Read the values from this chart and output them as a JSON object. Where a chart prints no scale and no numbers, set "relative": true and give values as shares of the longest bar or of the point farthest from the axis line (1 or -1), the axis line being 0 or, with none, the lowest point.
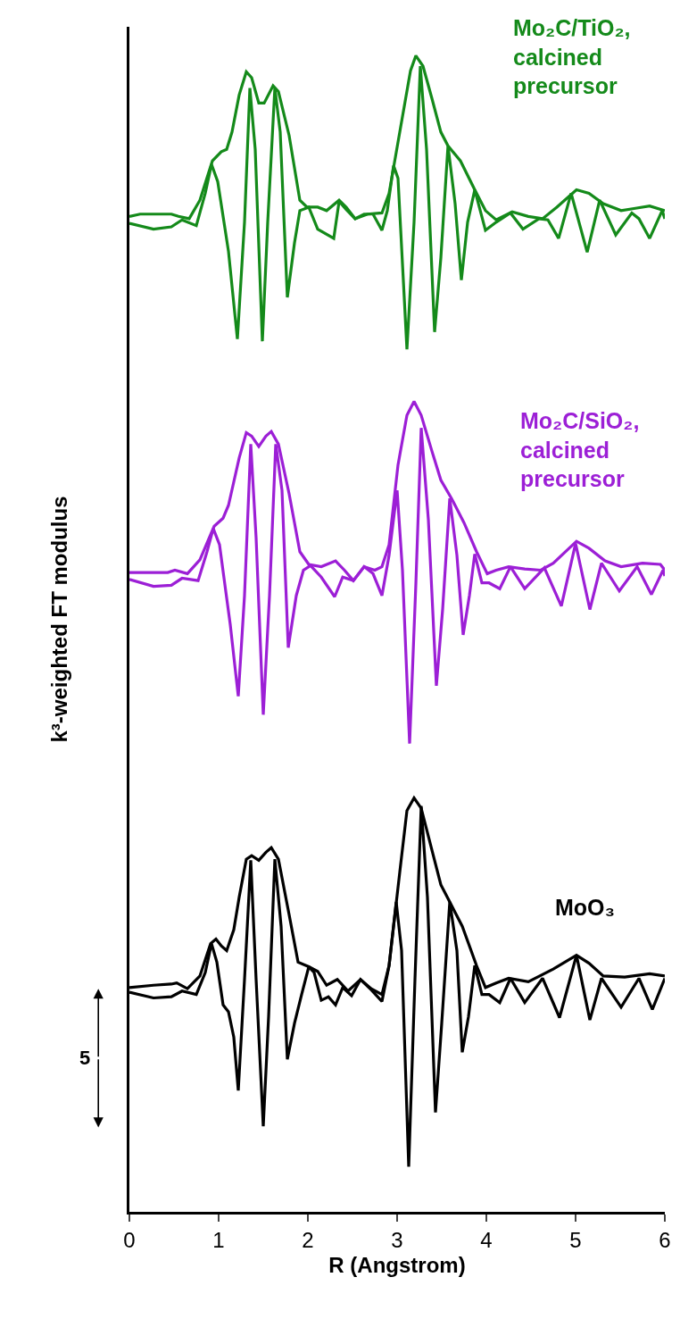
{
  "chart_data": {
    "type": "line",
    "relative": true,
    "xlabel": "R (Angstrom)",
    "ylabel": "k³-weighted FT modulus",
    "xlim": [
      0,
      6
    ],
    "xticks": [
      0,
      1,
      2,
      3,
      4,
      5,
      6
    ],
    "legend": false,
    "grid": false,
    "marker": "none",
    "line_style": "solid",
    "annotations": [
      "5"
    ],
    "series": [
      {
        "name": "Mo₂C/TiO₂, calcined precursor",
        "color": "#148a1a",
        "x": [
          0,
          0.12,
          0.27,
          0.47,
          0.55,
          0.67,
          0.79,
          0.93,
          1.03,
          1.09,
          1.15,
          1.23,
          1.31,
          1.37,
          1.45,
          1.51,
          1.61,
          1.67,
          1.79,
          1.91,
          1.99,
          2.11,
          2.21,
          2.35,
          2.43,
          2.53,
          2.67,
          2.83,
          2.91,
          3.03,
          3.15,
          3.21,
          3.29,
          3.39,
          3.49,
          3.57,
          3.71,
          3.87,
          3.99,
          4.11,
          4.29,
          4.47,
          4.63,
          4.79,
          5.01,
          5.15,
          5.31,
          5.51,
          5.67,
          5.83,
          6.0
        ],
        "values": [
          0.861,
          0.863,
          0.863,
          0.863,
          0.861,
          0.859,
          0.875,
          0.909,
          0.917,
          0.919,
          0.934,
          0.966,
          0.986,
          0.981,
          0.959,
          0.959,
          0.974,
          0.969,
          0.931,
          0.875,
          0.869,
          0.869,
          0.866,
          0.875,
          0.869,
          0.859,
          0.863,
          0.864,
          0.881,
          0.934,
          0.987,
          1.0,
          0.991,
          0.963,
          0.934,
          0.922,
          0.909,
          0.884,
          0.866,
          0.858,
          0.865,
          0.861,
          0.859,
          0.869,
          0.884,
          0.881,
          0.872,
          0.866,
          0.868,
          0.87,
          0.866
        ]
      },
      {
        "color": "#148a1a",
        "x": [
          0,
          0.27,
          0.47,
          0.59,
          0.75,
          0.85,
          0.92,
          0.99,
          1.11,
          1.21,
          1.29,
          1.35,
          1.41,
          1.49,
          1.55,
          1.63,
          1.69,
          1.77,
          1.85,
          1.91,
          2.01,
          2.11,
          2.29,
          2.35,
          2.43,
          2.53,
          2.63,
          2.73,
          2.83,
          2.89,
          2.96,
          3.01,
          3.11,
          3.19,
          3.26,
          3.33,
          3.42,
          3.49,
          3.57,
          3.65,
          3.72,
          3.79,
          3.87,
          3.99,
          4.11,
          4.27,
          4.41,
          4.59,
          4.69,
          4.81,
          4.95,
          5.13,
          5.27,
          5.45,
          5.63,
          5.71,
          5.83,
          5.97,
          6.0
        ],
        "values": [
          0.855,
          0.85,
          0.852,
          0.858,
          0.853,
          0.881,
          0.906,
          0.891,
          0.831,
          0.755,
          0.856,
          0.972,
          0.919,
          0.753,
          0.856,
          0.972,
          0.934,
          0.791,
          0.838,
          0.866,
          0.869,
          0.85,
          0.842,
          0.874,
          0.867,
          0.859,
          0.863,
          0.863,
          0.849,
          0.866,
          0.905,
          0.894,
          0.746,
          0.856,
          0.991,
          0.919,
          0.761,
          0.825,
          0.922,
          0.872,
          0.806,
          0.856,
          0.884,
          0.849,
          0.856,
          0.864,
          0.85,
          0.859,
          0.858,
          0.842,
          0.881,
          0.83,
          0.875,
          0.845,
          0.864,
          0.859,
          0.842,
          0.866,
          0.859
        ]
      },
      {
        "name": "Mo₂C/SiO₂, calcined precursor",
        "color": "#9c1fd6",
        "x": [
          0,
          0.19,
          0.43,
          0.51,
          0.65,
          0.79,
          0.95,
          1.05,
          1.11,
          1.23,
          1.31,
          1.37,
          1.45,
          1.53,
          1.59,
          1.67,
          1.79,
          1.91,
          2.01,
          2.15,
          2.31,
          2.41,
          2.51,
          2.63,
          2.75,
          2.83,
          2.91,
          3.01,
          3.11,
          3.19,
          3.27,
          3.39,
          3.49,
          3.61,
          3.75,
          3.89,
          4.01,
          4.11,
          4.25,
          4.43,
          4.61,
          4.75,
          5.01,
          5.15,
          5.33,
          5.51,
          5.75,
          5.95,
          6.0
        ],
        "values": [
          0.553,
          0.553,
          0.553,
          0.555,
          0.552,
          0.564,
          0.593,
          0.6,
          0.611,
          0.652,
          0.674,
          0.671,
          0.662,
          0.671,
          0.675,
          0.664,
          0.621,
          0.571,
          0.56,
          0.558,
          0.563,
          0.555,
          0.546,
          0.558,
          0.555,
          0.558,
          0.577,
          0.646,
          0.689,
          0.701,
          0.689,
          0.658,
          0.633,
          0.617,
          0.596,
          0.571,
          0.552,
          0.555,
          0.558,
          0.556,
          0.555,
          0.561,
          0.58,
          0.574,
          0.563,
          0.558,
          0.561,
          0.56,
          0.555
        ]
      },
      {
        "color": "#9c1fd6",
        "x": [
          0,
          0.27,
          0.47,
          0.59,
          0.77,
          0.87,
          0.94,
          1.01,
          1.13,
          1.22,
          1.29,
          1.36,
          1.42,
          1.5,
          1.57,
          1.64,
          1.71,
          1.78,
          1.87,
          1.95,
          2.03,
          2.15,
          2.3,
          2.39,
          2.51,
          2.63,
          2.73,
          2.83,
          2.91,
          3.0,
          3.06,
          3.14,
          3.21,
          3.27,
          3.35,
          3.44,
          3.51,
          3.59,
          3.67,
          3.74,
          3.81,
          3.87,
          3.95,
          4.03,
          4.15,
          4.27,
          4.43,
          4.65,
          4.84,
          5.0,
          5.16,
          5.29,
          5.49,
          5.69,
          5.85,
          5.98,
          6.0
        ],
        "values": [
          0.547,
          0.541,
          0.542,
          0.548,
          0.546,
          0.571,
          0.591,
          0.577,
          0.508,
          0.446,
          0.533,
          0.664,
          0.583,
          0.43,
          0.533,
          0.664,
          0.624,
          0.488,
          0.533,
          0.555,
          0.559,
          0.549,
          0.532,
          0.549,
          0.546,
          0.558,
          0.552,
          0.533,
          0.568,
          0.624,
          0.555,
          0.405,
          0.543,
          0.678,
          0.599,
          0.455,
          0.521,
          0.617,
          0.568,
          0.499,
          0.533,
          0.569,
          0.544,
          0.544,
          0.539,
          0.558,
          0.539,
          0.557,
          0.524,
          0.578,
          0.521,
          0.561,
          0.537,
          0.558,
          0.534,
          0.555,
          0.55
        ]
      },
      {
        "name": "MoO₃",
        "color": "#000000",
        "x": [
          0,
          0.27,
          0.47,
          0.53,
          0.65,
          0.79,
          0.91,
          0.97,
          1.03,
          1.09,
          1.17,
          1.23,
          1.31,
          1.37,
          1.45,
          1.53,
          1.59,
          1.67,
          1.79,
          1.89,
          2.01,
          2.11,
          2.21,
          2.33,
          2.45,
          2.59,
          2.71,
          2.83,
          2.91,
          3.03,
          3.11,
          3.19,
          3.27,
          3.39,
          3.49,
          3.59,
          3.73,
          3.89,
          3.99,
          4.11,
          4.25,
          4.47,
          4.75,
          5.01,
          5.15,
          5.31,
          5.55,
          5.83,
          6.0
        ],
        "values": [
          0.194,
          0.196,
          0.197,
          0.198,
          0.193,
          0.204,
          0.232,
          0.236,
          0.23,
          0.226,
          0.244,
          0.272,
          0.305,
          0.308,
          0.304,
          0.311,
          0.315,
          0.305,
          0.257,
          0.216,
          0.212,
          0.208,
          0.196,
          0.201,
          0.191,
          0.201,
          0.193,
          0.188,
          0.213,
          0.294,
          0.347,
          0.358,
          0.349,
          0.313,
          0.283,
          0.268,
          0.247,
          0.213,
          0.194,
          0.198,
          0.202,
          0.199,
          0.21,
          0.222,
          0.215,
          0.204,
          0.203,
          0.206,
          0.204
        ]
      },
      {
        "color": "#000000",
        "x": [
          0,
          0.27,
          0.47,
          0.59,
          0.75,
          0.85,
          0.92,
          0.98,
          1.05,
          1.11,
          1.17,
          1.22,
          1.29,
          1.36,
          1.42,
          1.5,
          1.56,
          1.63,
          1.7,
          1.77,
          1.85,
          1.93,
          2.01,
          2.07,
          2.15,
          2.23,
          2.31,
          2.39,
          2.49,
          2.59,
          2.71,
          2.83,
          2.91,
          2.99,
          3.05,
          3.13,
          3.2,
          3.27,
          3.34,
          3.43,
          3.5,
          3.59,
          3.67,
          3.73,
          3.8,
          3.87,
          3.95,
          4.03,
          4.15,
          4.27,
          4.43,
          4.63,
          4.82,
          5.01,
          5.16,
          5.29,
          5.51,
          5.71,
          5.86,
          6.0
        ],
        "values": [
          0.19,
          0.185,
          0.186,
          0.191,
          0.188,
          0.207,
          0.232,
          0.216,
          0.179,
          0.173,
          0.151,
          0.105,
          0.201,
          0.304,
          0.201,
          0.074,
          0.169,
          0.305,
          0.247,
          0.132,
          0.163,
          0.188,
          0.212,
          0.207,
          0.183,
          0.186,
          0.179,
          0.194,
          0.187,
          0.201,
          0.192,
          0.182,
          0.213,
          0.268,
          0.226,
          0.039,
          0.201,
          0.351,
          0.272,
          0.086,
          0.163,
          0.268,
          0.226,
          0.138,
          0.169,
          0.213,
          0.188,
          0.188,
          0.181,
          0.202,
          0.181,
          0.202,
          0.168,
          0.222,
          0.166,
          0.202,
          0.177,
          0.202,
          0.175,
          0.202
        ]
      }
    ]
  }
}
